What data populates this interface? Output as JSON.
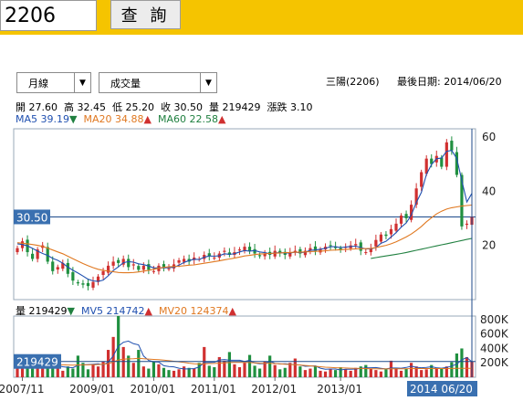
{
  "search": {
    "value": "2206",
    "button_label": "查 詢"
  },
  "controls": {
    "period_label": "月線",
    "indicator_label": "成交量"
  },
  "stock": {
    "name_code": "三陽(2206)",
    "last_date": "最後日期: 2014/06/20"
  },
  "ohlc": {
    "open": "開 27.60",
    "high": "高 32.45",
    "low": "低 25.20",
    "close": "收 30.50",
    "volume": "量 219429",
    "change": "漲跌 3.10"
  },
  "ma_legend": {
    "ma5": "MA5 39.19",
    "ma20": "MA20 34.88",
    "ma60": "MA60 22.58"
  },
  "vol_legend": {
    "vol": "量 219429",
    "mv5": "MV5 214742",
    "mv20": "MV20 124374"
  },
  "price_marker": "30.50",
  "volume_marker": "219429",
  "date_marker": "2014 06/20",
  "colors": {
    "up": "#d03030",
    "down": "#209040",
    "ma5": "#2050b0",
    "ma20": "#e07820",
    "ma60": "#208040",
    "marker_bg": "#3a70b0",
    "topbar": "#f5c400",
    "frame": "#1c4a8a"
  },
  "chart_data": [
    {
      "type": "candlestick",
      "title": "月線",
      "y_ticks": [
        "60",
        "40",
        "20"
      ],
      "y_range": [
        0,
        63
      ],
      "x_ticks": [
        "2007/11",
        "2009/01",
        "2010/01",
        "2011/01",
        "2012/01",
        "2013/01"
      ],
      "last_bar": {
        "date": "2014/06/20",
        "open": 27.6,
        "high": 32.45,
        "low": 25.2,
        "close": 30.5
      },
      "closes": [
        19.0,
        21.5,
        17.5,
        15.0,
        18.5,
        20.0,
        14.0,
        10.5,
        12.0,
        13.5,
        9.5,
        7.0,
        6.0,
        5.5,
        5.0,
        6.5,
        8.5,
        10.5,
        12.5,
        14.0,
        13.5,
        15.0,
        12.0,
        13.0,
        11.0,
        12.5,
        11.0,
        10.5,
        12.5,
        12.0,
        11.5,
        13.0,
        14.5,
        15.0,
        14.0,
        15.5,
        15.0,
        16.5,
        16.0,
        15.5,
        17.0,
        18.0,
        16.5,
        17.5,
        18.5,
        19.5,
        18.0,
        17.0,
        16.0,
        17.0,
        16.5,
        18.0,
        17.0,
        16.5,
        17.5,
        18.0,
        17.0,
        18.0,
        19.0,
        18.0,
        18.5,
        19.5,
        20.0,
        19.0,
        18.5,
        19.5,
        20.0,
        20.5,
        18.0,
        17.5,
        19.0,
        22.0,
        24.0,
        23.5,
        26.0,
        28.0,
        31.0,
        30.0,
        35.0,
        41.0,
        47.0,
        52.0,
        50.0,
        53.0,
        49.0,
        58.0,
        55.0,
        46.0,
        27.0,
        28.0,
        30.5
      ],
      "series": [
        {
          "name": "MA5",
          "values": [
            20.6,
            20.3,
            19.8,
            18.9,
            17.9,
            17.0,
            16.3,
            15.2,
            14.5,
            13.4,
            12.0,
            10.8,
            9.8,
            8.7,
            7.5,
            6.9,
            6.7,
            7.2,
            8.8,
            10.7,
            12.1,
            13.6,
            14.0,
            13.8,
            13.2,
            12.9,
            12.4,
            11.7,
            11.7,
            11.7,
            11.8,
            11.9,
            12.7,
            13.7,
            14.4,
            14.9,
            14.8,
            15.6,
            16.1,
            16.0,
            16.2,
            16.9,
            16.7,
            16.9,
            17.6,
            18.1,
            17.9,
            18.1,
            17.6,
            17.3,
            16.9,
            17.2,
            17.3,
            17.2,
            17.2,
            17.5,
            17.3,
            17.5,
            18.2,
            18.3,
            18.6,
            18.9,
            19.5,
            19.5,
            19.2,
            19.4,
            19.6,
            19.7,
            19.2,
            18.7,
            18.7,
            19.2,
            20.8,
            21.5,
            23.1,
            24.7,
            26.7,
            28.3,
            31.2,
            35.8,
            39.6,
            46.2,
            49.8,
            52.0,
            52.2,
            54.7,
            55.0,
            52.1,
            44.0,
            36.0,
            39.19
          ]
        },
        {
          "name": "MA20",
          "values": [
            21.0,
            20.8,
            20.6,
            20.3,
            20.0,
            19.6,
            19.0,
            18.3,
            17.6,
            16.9,
            16.0,
            15.1,
            14.2,
            13.3,
            12.5,
            11.8,
            11.2,
            10.8,
            10.5,
            10.3,
            10.0,
            9.9,
            9.9,
            10.0,
            10.2,
            10.5,
            10.8,
            11.2,
            11.6,
            11.9,
            12.1,
            12.2,
            12.3,
            12.5,
            12.7,
            12.8,
            13.1,
            13.4,
            13.7,
            14.0,
            14.3,
            14.7,
            15.0,
            15.3,
            15.7,
            16.1,
            16.3,
            16.6,
            16.8,
            16.9,
            17.0,
            17.1,
            17.2,
            17.3,
            17.4,
            17.5,
            17.5,
            17.6,
            17.7,
            17.8,
            17.9,
            18.0,
            18.2,
            18.3,
            18.4,
            18.5,
            18.6,
            18.7,
            18.8,
            18.8,
            18.9,
            19.2,
            19.6,
            20.0,
            20.6,
            21.3,
            22.2,
            23.1,
            24.2,
            25.5,
            27.0,
            28.7,
            30.2,
            31.6,
            32.6,
            33.4,
            33.9,
            34.2,
            34.5,
            34.7,
            34.88
          ]
        },
        {
          "name": "MA60",
          "values": [
            null,
            null,
            null,
            null,
            null,
            null,
            null,
            null,
            null,
            null,
            null,
            null,
            null,
            null,
            null,
            null,
            null,
            null,
            null,
            null,
            null,
            null,
            null,
            null,
            null,
            null,
            null,
            null,
            null,
            null,
            null,
            null,
            null,
            null,
            null,
            null,
            null,
            null,
            null,
            null,
            null,
            null,
            null,
            null,
            null,
            null,
            null,
            null,
            null,
            null,
            null,
            null,
            null,
            null,
            null,
            null,
            null,
            null,
            null,
            null,
            null,
            null,
            null,
            null,
            null,
            null,
            null,
            null,
            null,
            null,
            15.2,
            15.5,
            15.8,
            16.1,
            16.4,
            16.7,
            17.0,
            17.4,
            17.8,
            18.2,
            18.6,
            19.0,
            19.4,
            19.8,
            20.2,
            20.6,
            21.0,
            21.4,
            21.8,
            22.2,
            22.58
          ]
        }
      ]
    },
    {
      "type": "bar",
      "title": "成交量",
      "y_ticks": [
        "800K",
        "600K",
        "400K",
        "200K"
      ],
      "y_range": [
        0,
        850000
      ],
      "values": [
        180000,
        240000,
        150000,
        120000,
        160000,
        200000,
        140000,
        130000,
        170000,
        90000,
        150000,
        120000,
        300000,
        200000,
        110000,
        180000,
        150000,
        220000,
        380000,
        560000,
        850000,
        420000,
        300000,
        200000,
        380000,
        150000,
        120000,
        220000,
        180000,
        130000,
        100000,
        90000,
        110000,
        150000,
        130000,
        120000,
        200000,
        420000,
        160000,
        140000,
        280000,
        230000,
        350000,
        180000,
        140000,
        200000,
        310000,
        160000,
        120000,
        220000,
        300000,
        170000,
        110000,
        130000,
        200000,
        260000,
        150000,
        100000,
        120000,
        160000,
        90000,
        80000,
        120000,
        100000,
        140000,
        110000,
        90000,
        130000,
        150000,
        170000,
        120000,
        100000,
        80000,
        110000,
        230000,
        130000,
        90000,
        120000,
        200000,
        150000,
        100000,
        110000,
        170000,
        130000,
        120000,
        150000,
        210000,
        330000,
        400000,
        280000,
        219429
      ],
      "series": [
        {
          "name": "MV5",
          "values": [
            200000,
            195000,
            180000,
            170000,
            160000,
            174000,
            154000,
            150000,
            160000,
            146000,
            138000,
            132000,
            166000,
            172000,
            176000,
            182000,
            188000,
            172000,
            208000,
            298000,
            432000,
            486000,
            502000,
            466000,
            450000,
            294000,
            234000,
            214000,
            210000,
            160000,
            150000,
            144000,
            126000,
            116000,
            116000,
            120000,
            142000,
            204000,
            206000,
            208000,
            240000,
            246000,
            236000,
            236000,
            236000,
            220000,
            236000,
            198000,
            186000,
            190000,
            222000,
            194000,
            184000,
            186000,
            182000,
            174000,
            170000,
            152000,
            156000,
            158000,
            126000,
            110000,
            114000,
            114000,
            102000,
            110000,
            112000,
            114000,
            124000,
            130000,
            132000,
            134000,
            124000,
            116000,
            128000,
            128000,
            126000,
            136000,
            154000,
            138000,
            132000,
            136000,
            146000,
            132000,
            126000,
            136000,
            156000,
            182000,
            242000,
            274000,
            214742
          ]
        },
        {
          "name": "MV20",
          "values": [
            190000,
            190000,
            188000,
            185000,
            182000,
            180000,
            178000,
            176000,
            175000,
            172000,
            170000,
            168000,
            170000,
            172000,
            172000,
            174000,
            176000,
            180000,
            190000,
            210000,
            240000,
            250000,
            255000,
            258000,
            262000,
            258000,
            252000,
            248000,
            244000,
            238000,
            230000,
            222000,
            214000,
            205000,
            196000,
            188000,
            184000,
            188000,
            190000,
            192000,
            196000,
            200000,
            204000,
            206000,
            206000,
            204000,
            204000,
            200000,
            196000,
            194000,
            194000,
            190000,
            186000,
            182000,
            178000,
            174000,
            170000,
            164000,
            158000,
            152000,
            146000,
            140000,
            136000,
            132000,
            130000,
            128000,
            126000,
            124000,
            122000,
            120000,
            118000,
            117000,
            116000,
            116000,
            118000,
            118000,
            118000,
            118000,
            120000,
            120000,
            120000,
            120000,
            121000,
            121000,
            121000,
            121000,
            122000,
            123000,
            124000,
            124000,
            124374
          ]
        }
      ]
    }
  ]
}
